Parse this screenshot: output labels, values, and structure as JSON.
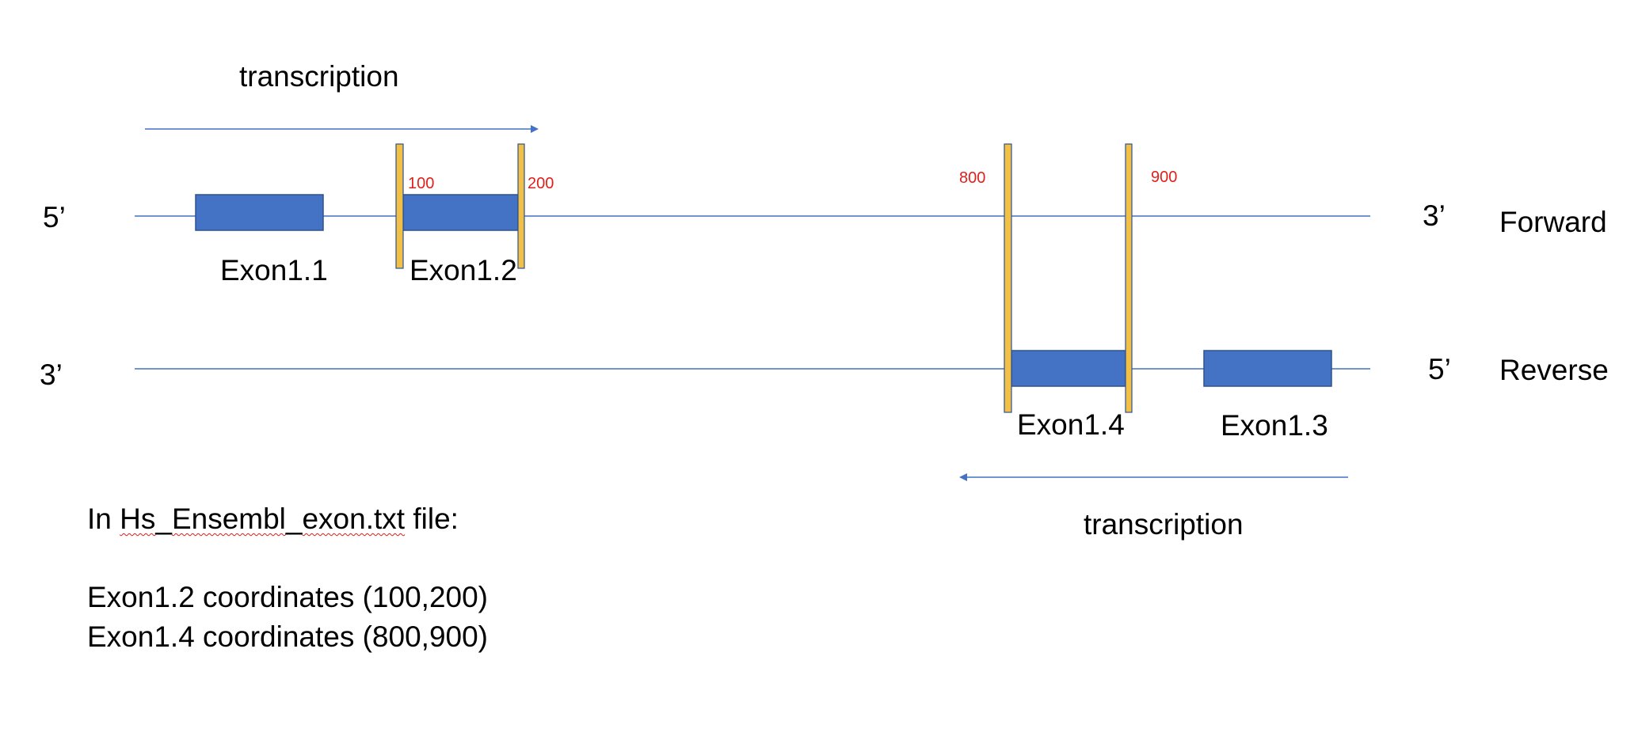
{
  "colors": {
    "line": "#4472C4",
    "exon_fill": "#4472C4",
    "exon_stroke": "#2F528F",
    "marker_fill": "#F2C046",
    "marker_stroke": "#2F528F",
    "coordinate_text": "#E0201B",
    "spellcheck_underline": "#D61F1F"
  },
  "forward_strand": {
    "left_end": "5’",
    "right_end": "3’",
    "label": "Forward",
    "transcription_label": "transcription",
    "exons": [
      "Exon1.1",
      "Exon1.2"
    ],
    "coordinates": [
      "100",
      "200"
    ]
  },
  "reverse_strand": {
    "left_end": "3’",
    "right_end": "5’",
    "label": "Reverse",
    "transcription_label": "transcription",
    "exons": [
      "Exon1.4",
      "Exon1.3"
    ],
    "coordinates": [
      "800",
      "900"
    ]
  },
  "notes": {
    "line1_prefix": "In ",
    "line1_filename_a": "Hs",
    "line1_filename_b": "_",
    "line1_filename_c": "Ensembl",
    "line1_filename_d": "_",
    "line1_filename_e": "exon.txt",
    "line1_suffix": " file:",
    "line2": "Exon1.2 coordinates (100,200)",
    "line3": "Exon1.4 coordinates (800,900)"
  }
}
